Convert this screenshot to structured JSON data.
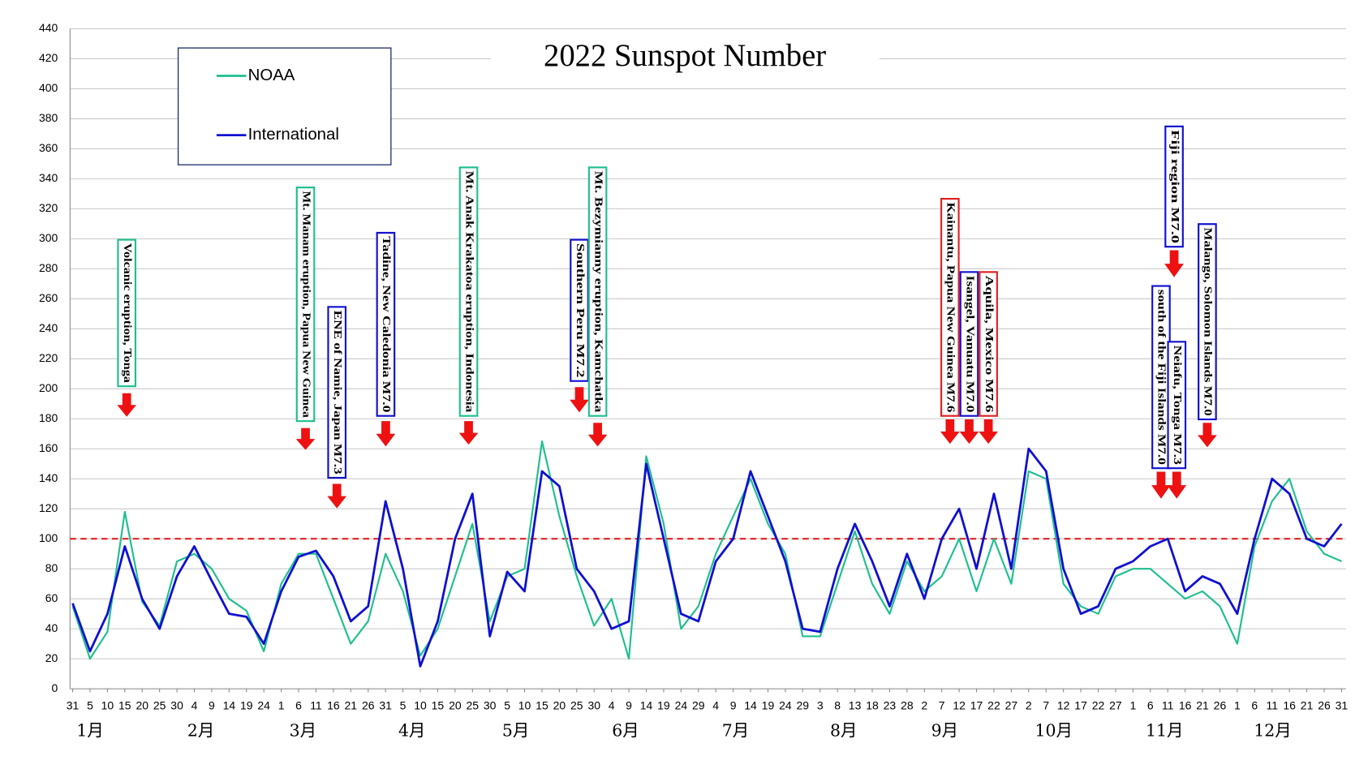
{
  "chart_data": {
    "type": "line",
    "title": "2022 Sunspot Number",
    "categories": [
      "31",
      "5",
      "10",
      "15",
      "20",
      "25",
      "30",
      "4",
      "9",
      "14",
      "19",
      "24",
      "1",
      "6",
      "11",
      "16",
      "21",
      "26",
      "31",
      "5",
      "10",
      "15",
      "20",
      "25",
      "30",
      "5",
      "10",
      "15",
      "20",
      "25",
      "30",
      "4",
      "9",
      "14",
      "19",
      "24",
      "29",
      "4",
      "9",
      "14",
      "19",
      "24",
      "29",
      "3",
      "8",
      "13",
      "18",
      "23",
      "28",
      "2",
      "7",
      "12",
      "17",
      "22",
      "27",
      "2",
      "7",
      "12",
      "17",
      "22",
      "27",
      "1",
      "6",
      "11",
      "16",
      "21",
      "26",
      "1",
      "6",
      "11",
      "16",
      "21",
      "26",
      "31"
    ],
    "month_labels": [
      "1月",
      "2月",
      "3月",
      "4月",
      "5月",
      "6月",
      "7月",
      "8月",
      "9月",
      "10月",
      "11月",
      "12月"
    ],
    "series": [
      {
        "name": "NOAA",
        "color": "#1fbf8f",
        "values": [
          55,
          20,
          38,
          118,
          58,
          42,
          85,
          90,
          80,
          60,
          52,
          25,
          70,
          90,
          90,
          60,
          30,
          45,
          90,
          65,
          22,
          40,
          75,
          110,
          45,
          75,
          80,
          165,
          115,
          75,
          42,
          60,
          20,
          155,
          110,
          40,
          55,
          90,
          115,
          140,
          110,
          90,
          35,
          35,
          70,
          105,
          70,
          50,
          85,
          65,
          75,
          100,
          65,
          100,
          70,
          145,
          140,
          70,
          55,
          50,
          75,
          80,
          80,
          70,
          60,
          65,
          55,
          30,
          95,
          125,
          140,
          105,
          90,
          85
        ]
      },
      {
        "name": "International",
        "color": "#1010d0",
        "values": [
          57,
          25,
          50,
          95,
          60,
          40,
          75,
          95,
          72,
          50,
          48,
          30,
          65,
          88,
          92,
          75,
          45,
          55,
          125,
          80,
          15,
          45,
          100,
          130,
          35,
          78,
          65,
          145,
          135,
          80,
          65,
          40,
          45,
          150,
          100,
          50,
          45,
          85,
          100,
          145,
          115,
          85,
          40,
          38,
          80,
          110,
          85,
          55,
          90,
          60,
          100,
          120,
          80,
          130,
          80,
          160,
          145,
          80,
          50,
          55,
          80,
          85,
          95,
          100,
          65,
          75,
          70,
          50,
          100,
          140,
          130,
          100,
          95,
          110
        ]
      }
    ],
    "ylim": [
      0,
      440
    ],
    "yticks": [
      0,
      20,
      40,
      60,
      80,
      100,
      120,
      140,
      160,
      180,
      200,
      220,
      240,
      260,
      280,
      300,
      320,
      340,
      360,
      380,
      400,
      420,
      440
    ],
    "grid": true,
    "reference_line": {
      "value": 100,
      "color": "#e02020"
    },
    "annotations": [
      {
        "text": "Volcanic eruption, Tonga",
        "color": "#1fbf8f"
      },
      {
        "text": "Mt. Manam eruption, Papua New Guinea",
        "color": "#1fbf8f"
      },
      {
        "text": "ENE of Namie, Japan M7.3",
        "color": "#1010d0"
      },
      {
        "text": "Tadine, New Caledonia M7.0",
        "color": "#1010d0"
      },
      {
        "text": "Mt. Anak Krakatoa eruption, Indonesia",
        "color": "#1fbf8f"
      },
      {
        "text": "Southern Peru M7.2",
        "color": "#1010d0"
      },
      {
        "text": "Mt. Bezymianny eruption, Kamchatka",
        "color": "#1fbf8f"
      },
      {
        "text": "Kainantu, Papua New Guinea M7.6",
        "color": "#e02020"
      },
      {
        "text": "Isangel, Vanuatu M7.0",
        "color": "#1010d0"
      },
      {
        "text": "Aquila, Mexico M7.6",
        "color": "#e02020"
      },
      {
        "text": "Fiji region M7.0",
        "color": "#1010d0"
      },
      {
        "text": "south of the Fiji Islands M7.0",
        "color": "#1010d0"
      },
      {
        "text": "Neiafu, Tonga M7.3",
        "color": "#1010d0"
      },
      {
        "text": "Malango, Solomon Islands M7.0",
        "color": "#1010d0"
      }
    ],
    "arrow_color": "#ee1111"
  }
}
